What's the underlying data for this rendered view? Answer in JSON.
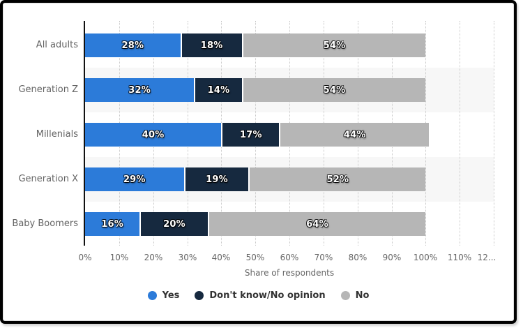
{
  "chart_data": {
    "type": "bar",
    "orientation": "horizontal",
    "stacked": true,
    "categories": [
      "All adults",
      "Generation Z",
      "Millenials",
      "Generation X",
      "Baby Boomers"
    ],
    "series": [
      {
        "name": "Yes",
        "color": "#2c7bd9",
        "values": [
          28,
          32,
          40,
          29,
          16
        ]
      },
      {
        "name": "Don't know/No opinion",
        "color": "#16293f",
        "values": [
          18,
          14,
          17,
          19,
          20
        ]
      },
      {
        "name": "No",
        "color": "#b6b6b6",
        "values": [
          54,
          54,
          44,
          52,
          64
        ]
      }
    ],
    "data_labels": [
      [
        "28%",
        "18%",
        "54%"
      ],
      [
        "32%",
        "14%",
        "54%"
      ],
      [
        "40%",
        "17%",
        "44%"
      ],
      [
        "29%",
        "19%",
        "52%"
      ],
      [
        "16%",
        "20%",
        "64%"
      ]
    ],
    "title": "",
    "xlabel": "Share of respondents",
    "ylabel": "",
    "xlim": [
      0,
      120
    ],
    "x_tick_labels": [
      "0%",
      "10%",
      "20%",
      "30%",
      "40%",
      "50%",
      "60%",
      "70%",
      "80%",
      "90%",
      "100%",
      "110%",
      "12..."
    ],
    "grid": "vertical-dotted",
    "alternate_band_color": "#f7f7f7",
    "legend_position": "bottom",
    "legend_entries": [
      "Yes",
      "Don't know/No opinion",
      "No"
    ]
  },
  "styles": {
    "axis_line_color": "#111111",
    "gridline_color": "#c9c9c9",
    "tick_label_color": "#666666",
    "category_label_color": "#636363",
    "legend_text_color": "#333333",
    "frame_border_color": "#000000",
    "card_background": "#ffffff"
  }
}
